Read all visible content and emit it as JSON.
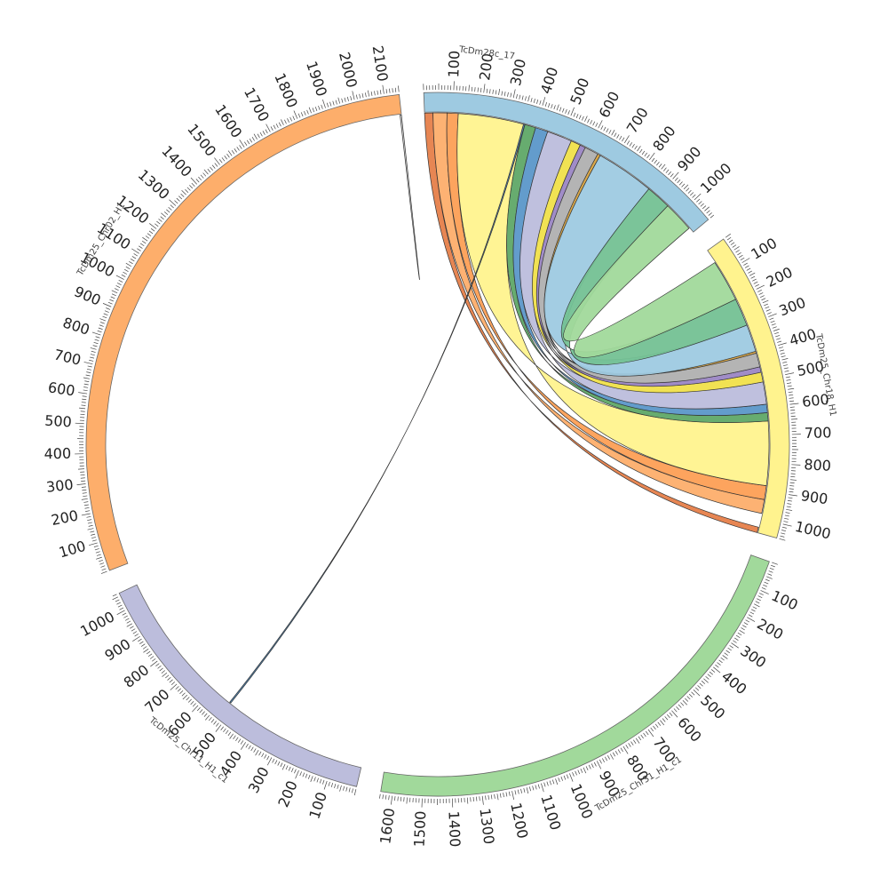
{
  "chart_data": {
    "type": "chord",
    "title": "",
    "tick_interval": 100,
    "segments": [
      {
        "name": "TcDm28c_17",
        "length": 1080,
        "color": "#9ecae1",
        "tick_labels": [
          "100",
          "200",
          "300",
          "400",
          "500",
          "600",
          "700",
          "800",
          "900",
          "1000"
        ]
      },
      {
        "name": "TcDm25_Chr18_H1",
        "length": 1050,
        "color": "#fff38e",
        "tick_labels": [
          "100",
          "200",
          "300",
          "400",
          "500",
          "600",
          "700",
          "800",
          "900",
          "1000"
        ]
      },
      {
        "name": "TcDm25_Chr31_H1_c1",
        "length": 1640,
        "color": "#a1d99b",
        "tick_labels": [
          "100",
          "200",
          "300",
          "400",
          "500",
          "600",
          "700",
          "800",
          "900",
          "1000",
          "1100",
          "1200",
          "1300",
          "1400",
          "1500",
          "1600"
        ]
      },
      {
        "name": "TcDm25_Chr11_H1_c1",
        "length": 1060,
        "color": "#bcbddc",
        "tick_labels": [
          "100",
          "200",
          "300",
          "400",
          "500",
          "600",
          "700",
          "800",
          "900",
          "1000"
        ]
      },
      {
        "name": "TcDm25_Chr02_H1",
        "length": 2150,
        "color": "#fdae6b",
        "tick_labels": [
          "100",
          "200",
          "300",
          "400",
          "500",
          "600",
          "700",
          "800",
          "900",
          "1000",
          "1100",
          "1200",
          "1300",
          "1400",
          "1500",
          "1600",
          "1700",
          "1800",
          "1900",
          "2000",
          "2100"
        ]
      }
    ],
    "links": [
      {
        "from": "TcDm28c_17",
        "from_range": [
          0,
          30
        ],
        "to": "TcDm25_Chr18_H1",
        "to_range": [
          1030,
          1050
        ],
        "color": "#e6804a"
      },
      {
        "from": "TcDm28c_17",
        "from_range": [
          30,
          80
        ],
        "to": "TcDm25_Chr18_H1",
        "to_range": [
          930,
          980
        ],
        "color": "#fdae6b"
      },
      {
        "from": "TcDm28c_17",
        "from_range": [
          80,
          120
        ],
        "to": "TcDm25_Chr18_H1",
        "to_range": [
          880,
          930
        ],
        "color": "#fd9f55"
      },
      {
        "from": "TcDm28c_17",
        "from_range": [
          120,
          360
        ],
        "to": "TcDm25_Chr18_H1",
        "to_range": [
          650,
          880
        ],
        "color": "#fff38e"
      },
      {
        "from": "TcDm28c_17",
        "from_range": [
          360,
          400
        ],
        "to": "TcDm25_Chr18_H1",
        "to_range": [
          620,
          650
        ],
        "color": "#5fa867"
      },
      {
        "from": "TcDm28c_17",
        "from_range": [
          400,
          445
        ],
        "to": "TcDm25_Chr18_H1",
        "to_range": [
          590,
          620
        ],
        "color": "#5b97c9"
      },
      {
        "from": "TcDm28c_17",
        "from_range": [
          445,
          535
        ],
        "to": "TcDm25_Chr18_H1",
        "to_range": [
          510,
          590
        ],
        "color": "#bcbddc"
      },
      {
        "from": "TcDm28c_17",
        "from_range": [
          535,
          570
        ],
        "to": "TcDm25_Chr18_H1",
        "to_range": [
          475,
          510
        ],
        "color": "#f0e04a"
      },
      {
        "from": "TcDm28c_17",
        "from_range": [
          570,
          590
        ],
        "to": "TcDm25_Chr18_H1",
        "to_range": [
          455,
          475
        ],
        "color": "#9b86c4"
      },
      {
        "from": "TcDm28c_17",
        "from_range": [
          590,
          640
        ],
        "to": "TcDm25_Chr18_H1",
        "to_range": [
          405,
          455
        ],
        "color": "#b0b0b0"
      },
      {
        "from": "TcDm28c_17",
        "from_range": [
          640,
          650
        ],
        "to": "TcDm25_Chr18_H1",
        "to_range": [
          398,
          405
        ],
        "color": "#d9a441"
      },
      {
        "from": "TcDm28c_17",
        "from_range": [
          650,
          860
        ],
        "to": "TcDm25_Chr18_H1",
        "to_range": [
          300,
          398
        ],
        "color": "#9ecae1"
      },
      {
        "from": "TcDm28c_17",
        "from_range": [
          860,
          950
        ],
        "to": "TcDm25_Chr18_H1",
        "to_range": [
          200,
          300
        ],
        "color": "#74c193"
      },
      {
        "from": "TcDm28c_17",
        "from_range": [
          950,
          1060
        ],
        "to": "TcDm25_Chr18_H1",
        "to_range": [
          50,
          200
        ],
        "color": "#a1d99b"
      },
      {
        "from": "TcDm28c_17",
        "from_range": [
          355,
          360
        ],
        "to": "TcDm25_Chr11_H1_c1",
        "to_range": [
          520,
          525
        ],
        "color": "#4a7fae"
      },
      {
        "from": "TcDm25_Chr02_H1",
        "from_range": [
          2145,
          2150
        ],
        "to": "TcDm25_Chr02_H1",
        "to_range": [
          2150,
          2150
        ],
        "color": "#d9d9d9"
      }
    ]
  }
}
